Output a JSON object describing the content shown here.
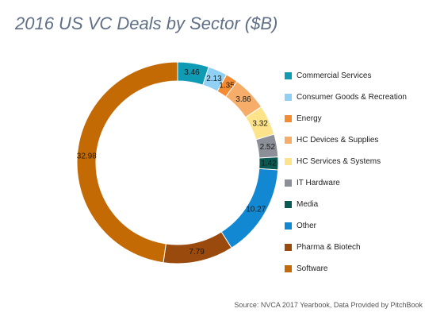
{
  "chart_data": {
    "type": "pie",
    "donut": true,
    "title": "2016 US VC Deals by Sector ($B)",
    "legend_position": "right",
    "source": "Source: NVCA 2017 Yearbook, Data Provided by PitchBook",
    "slices": [
      {
        "label": "Commercial Services",
        "value": 3.46,
        "display": "3.46",
        "color": "#0f9bb4"
      },
      {
        "label": "Consumer Goods & Recreation",
        "value": 2.13,
        "display": "2.13",
        "color": "#8fd0f4"
      },
      {
        "label": "Energy",
        "value": 1.35,
        "display": "1.35",
        "color": "#f28b32"
      },
      {
        "label": "HC Devices & Supplies",
        "value": 3.86,
        "display": "3.86",
        "color": "#f6ad69"
      },
      {
        "label": "HC Services & Systems",
        "value": 3.32,
        "display": "3.32",
        "color": "#fde48a"
      },
      {
        "label": "IT Hardware",
        "value": 2.52,
        "display": "2.52",
        "color": "#8c8f98"
      },
      {
        "label": "Media",
        "value": 1.42,
        "display": "1.42",
        "color": "#0a5a54"
      },
      {
        "label": "Other",
        "value": 10.27,
        "display": "10.27",
        "color": "#1287d2"
      },
      {
        "label": "Pharma & Biotech",
        "value": 7.79,
        "display": "7.79",
        "color": "#9a4a0c"
      },
      {
        "label": "Software",
        "value": 32.98,
        "display": "32.98",
        "color": "#c46a05"
      }
    ]
  }
}
